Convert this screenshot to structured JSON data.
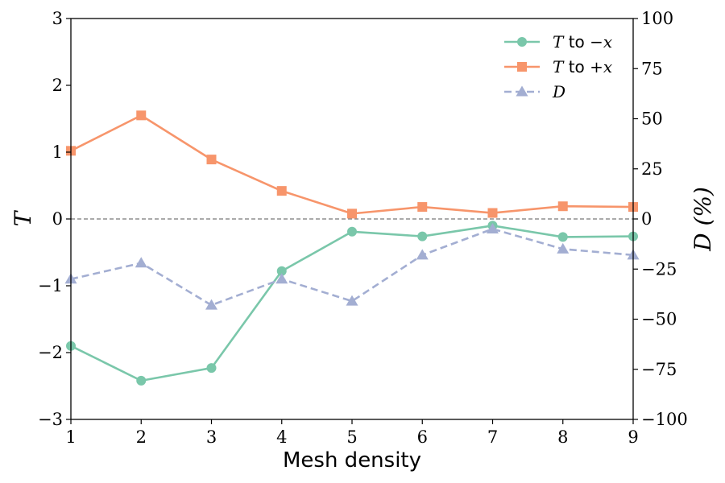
{
  "chart_data": {
    "type": "line",
    "title": "",
    "x": [
      1,
      2,
      3,
      4,
      5,
      6,
      7,
      8,
      9
    ],
    "xlabel": "Mesh density",
    "xlim": [
      1,
      9
    ],
    "xticks": [
      "1",
      "2",
      "3",
      "4",
      "5",
      "6",
      "7",
      "8",
      "9"
    ],
    "left_axis": {
      "label": "T",
      "ylim": [
        -3,
        3
      ],
      "ticks": [
        -3,
        -2,
        -1,
        0,
        1,
        2,
        3
      ],
      "tick_labels": [
        "−3",
        "−2",
        "−1",
        "0",
        "1",
        "2",
        "3"
      ]
    },
    "right_axis": {
      "label": "D (%)",
      "ylim": [
        -100,
        100
      ],
      "ticks": [
        -100,
        -75,
        -50,
        -25,
        0,
        25,
        50,
        75,
        100
      ],
      "tick_labels": [
        "−100",
        "−75",
        "−50",
        "−25",
        "0",
        "25",
        "50",
        "75",
        "100"
      ]
    },
    "zero_line": true,
    "grid": false,
    "legend_position": "top-right",
    "series": [
      {
        "name": "T to −x",
        "legend_prefix": "T",
        "legend_mid": " to ",
        "legend_suffix": "−x",
        "axis": "left",
        "color": "#7ac7aa",
        "marker": "circle",
        "dash": "solid",
        "values": [
          -1.9,
          -2.42,
          -2.23,
          -0.78,
          -0.19,
          -0.26,
          -0.1,
          -0.27,
          -0.26
        ]
      },
      {
        "name": "T to +x",
        "legend_prefix": "T",
        "legend_mid": " to ",
        "legend_suffix": "+x",
        "axis": "left",
        "color": "#f7956b",
        "marker": "square",
        "dash": "solid",
        "values": [
          1.02,
          1.55,
          0.89,
          0.42,
          0.08,
          0.18,
          0.09,
          0.19,
          0.18
        ]
      },
      {
        "name": "D",
        "legend_prefix": "D",
        "legend_mid": "",
        "legend_suffix": "",
        "axis": "right",
        "color": "#a3aed2",
        "marker": "triangle",
        "dash": "dashed",
        "values": [
          -30,
          -22,
          -43,
          -30,
          -41,
          -18,
          -5,
          -15,
          -18
        ]
      }
    ]
  }
}
